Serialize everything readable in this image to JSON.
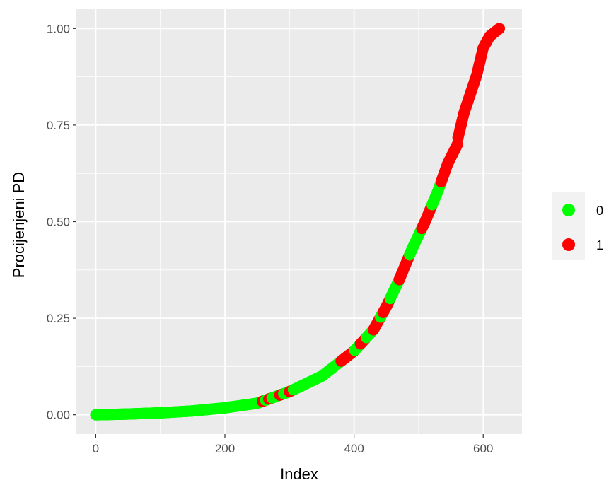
{
  "chart_data": {
    "type": "scatter",
    "title": "",
    "xlabel": "Index",
    "ylabel": "Procijenjeni PD",
    "xlim": [
      -30,
      660
    ],
    "ylim": [
      -0.05,
      1.05
    ],
    "x_ticks": [
      0,
      200,
      400,
      600
    ],
    "x_tick_labels": [
      "0",
      "200",
      "400",
      "600"
    ],
    "x_minor_ticks": [
      100,
      300,
      500
    ],
    "y_ticks": [
      0.0,
      0.25,
      0.5,
      0.75,
      1.0
    ],
    "y_tick_labels": [
      "0.00",
      "0.25",
      "0.50",
      "0.75",
      "1.00"
    ],
    "y_minor_ticks": [
      0.125,
      0.375,
      0.625,
      0.875
    ],
    "grid": true,
    "panel_background": "#ebebeb",
    "grid_color": "#ffffff",
    "legend": {
      "position": "right",
      "title": "",
      "entries": [
        {
          "label": "0",
          "color": "#00ff00"
        },
        {
          "label": "1",
          "color": "#ff0000"
        }
      ]
    },
    "series": [
      {
        "name": "0",
        "color": "#00ff00",
        "x_range": [
          0,
          560
        ],
        "curve_points": [
          [
            0,
            0.0
          ],
          [
            50,
            0.002
          ],
          [
            100,
            0.005
          ],
          [
            150,
            0.01
          ],
          [
            200,
            0.018
          ],
          [
            250,
            0.03
          ],
          [
            300,
            0.06
          ],
          [
            350,
            0.1
          ],
          [
            400,
            0.165
          ],
          [
            430,
            0.22
          ],
          [
            450,
            0.28
          ],
          [
            470,
            0.35
          ],
          [
            490,
            0.43
          ],
          [
            510,
            0.5
          ],
          [
            530,
            0.58
          ],
          [
            545,
            0.65
          ],
          [
            560,
            0.7
          ]
        ]
      },
      {
        "name": "1",
        "color": "#ff0000",
        "highlight_ranges": [
          [
            258,
            262
          ],
          [
            268,
            272
          ],
          [
            285,
            290
          ],
          [
            300,
            305
          ],
          [
            380,
            400
          ],
          [
            410,
            418
          ],
          [
            430,
            440
          ],
          [
            445,
            455
          ],
          [
            470,
            485
          ],
          [
            505,
            520
          ],
          [
            535,
            560
          ],
          [
            560,
            625
          ]
        ],
        "curve_points": [
          [
            560,
            0.71
          ],
          [
            570,
            0.78
          ],
          [
            580,
            0.83
          ],
          [
            590,
            0.88
          ],
          [
            600,
            0.95
          ],
          [
            610,
            0.98
          ],
          [
            625,
            1.0
          ]
        ]
      }
    ]
  }
}
